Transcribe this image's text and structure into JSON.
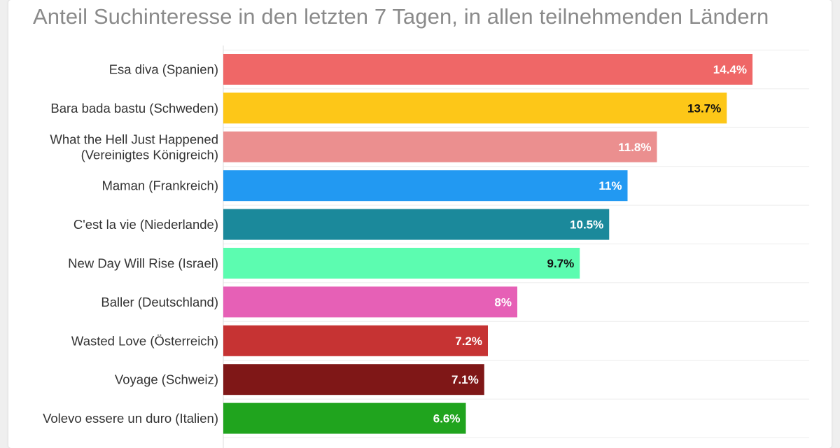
{
  "subtitle": "Anteil Suchinteresse in den letzten 7 Tagen, in allen teilnehmenden Ländern",
  "chart_data": {
    "type": "bar",
    "orientation": "horizontal",
    "title": "",
    "subtitle": "Anteil Suchinteresse in den letzten 7 Tagen, in allen teilnehmenden Ländern",
    "xlabel": "",
    "ylabel": "",
    "xlim": [
      0,
      15
    ],
    "grid": true,
    "legend": "none",
    "bars": [
      {
        "label": [
          "Esa diva (Spanien)"
        ],
        "value": 14.4,
        "value_label": "14.4%",
        "color": "#ef6767",
        "label_color": "#ffffff"
      },
      {
        "label": [
          "Bara bada bastu (Schweden)"
        ],
        "value": 13.7,
        "value_label": "13.7%",
        "color": "#fdc718",
        "label_color": "#111111"
      },
      {
        "label": [
          "What the Hell Just Happened",
          "(Vereinigtes Königreich)"
        ],
        "value": 11.8,
        "value_label": "11.8%",
        "color": "#eb8f8f",
        "label_color": "#ffffff"
      },
      {
        "label": [
          "Maman (Frankreich)"
        ],
        "value": 11,
        "value_label": "11%",
        "color": "#2299f2",
        "label_color": "#ffffff"
      },
      {
        "label": [
          "C'est la vie (Niederlande)"
        ],
        "value": 10.5,
        "value_label": "10.5%",
        "color": "#1b899b",
        "label_color": "#ffffff"
      },
      {
        "label": [
          "New Day Will Rise (Israel)"
        ],
        "value": 9.7,
        "value_label": "9.7%",
        "color": "#5cfcb0",
        "label_color": "#111111"
      },
      {
        "label": [
          "Baller (Deutschland)"
        ],
        "value": 8,
        "value_label": "8%",
        "color": "#e660b6",
        "label_color": "#ffffff"
      },
      {
        "label": [
          "Wasted Love (Österreich)"
        ],
        "value": 7.2,
        "value_label": "7.2%",
        "color": "#c63333",
        "label_color": "#ffffff"
      },
      {
        "label": [
          "Voyage (Schweiz)"
        ],
        "value": 7.1,
        "value_label": "7.1%",
        "color": "#7f1717",
        "label_color": "#ffffff"
      },
      {
        "label": [
          "Volevo essere un duro (Italien)"
        ],
        "value": 6.6,
        "value_label": "6.6%",
        "color": "#20a41e",
        "label_color": "#ffffff"
      }
    ]
  }
}
